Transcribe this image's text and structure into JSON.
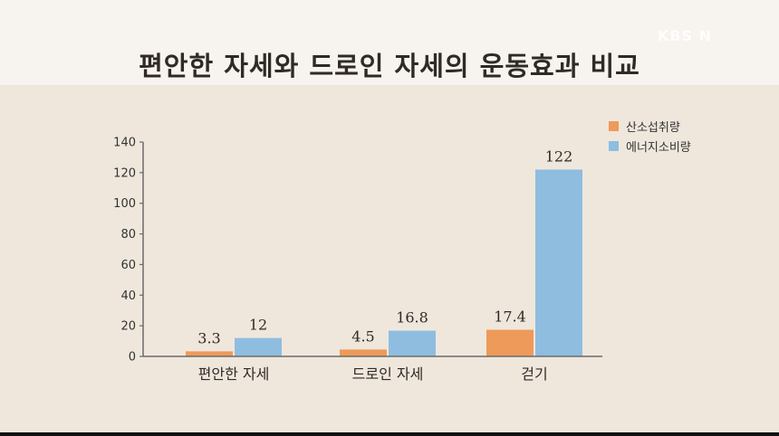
{
  "header": {
    "title": "편안한 자세와 드로인 자세의 운동효과 비교",
    "logo": "KBS N"
  },
  "colors": {
    "background": "#efe7dc",
    "title_band": "#f7f3ee",
    "oxygen": "#ee9a5a",
    "energy": "#8fbde0",
    "axis": "#6b6b6b",
    "text": "#333333"
  },
  "chart_data": {
    "type": "bar",
    "title": "편안한 자세와 드로인 자세의 운동효과 비교",
    "categories": [
      "편안한 자세",
      "드로인 자세",
      "걷기"
    ],
    "series": [
      {
        "name": "산소섭취량",
        "values": [
          3.3,
          4.5,
          17.4
        ],
        "labels": [
          "3.3",
          "4.5",
          "17.4"
        ],
        "color": "#ee9a5a"
      },
      {
        "name": "에너지소비량",
        "values": [
          12,
          16.8,
          122
        ],
        "labels": [
          "12",
          "16.8",
          "122"
        ],
        "color": "#8fbde0"
      }
    ],
    "yticks": [
      0,
      20,
      40,
      60,
      80,
      100,
      120,
      140
    ],
    "ylim": [
      0,
      140
    ],
    "xlabel": "",
    "ylabel": "",
    "grid": false,
    "legend_position": "top-right"
  }
}
